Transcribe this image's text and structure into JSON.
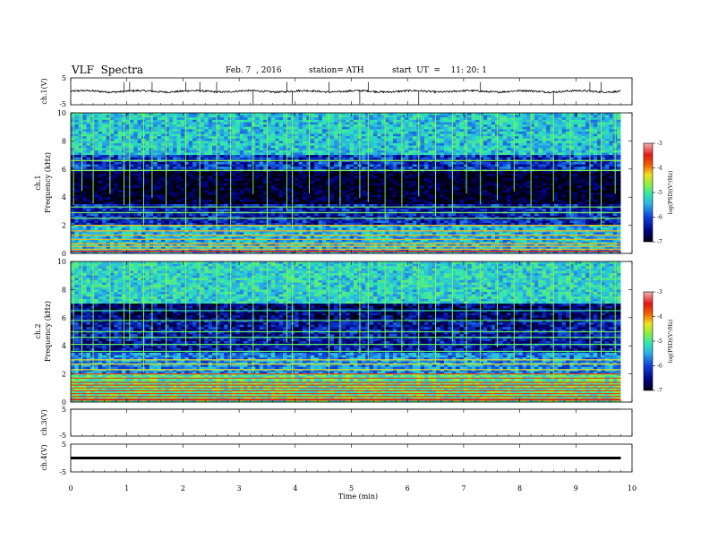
{
  "header": {
    "title": "VLF  Spectra",
    "date": "Feb. 7  , 2016",
    "station": "station= ATH",
    "start": "start  UT  =    11: 20: 1"
  },
  "panels": {
    "ch1_wave": {
      "ylabel": "ch.1(V)",
      "yticks": [
        "5",
        "-5"
      ]
    },
    "ch1_spec": {
      "ylabel_top": "ch.1",
      "ylabel": "Frequency  (kHz)",
      "yticks": [
        "10",
        "8",
        "6",
        "4",
        "2",
        "0"
      ]
    },
    "ch2_spec": {
      "ylabel_top": "ch.2",
      "ylabel": "Frequency  (kHz)",
      "yticks": [
        "10",
        "8",
        "6",
        "4",
        "2",
        "0"
      ]
    },
    "ch3_wave": {
      "ylabel": "ch.3(V)",
      "yticks": [
        "5",
        "-5"
      ]
    },
    "ch4_wave": {
      "ylabel": "ch.4(V)",
      "yticks": [
        "5",
        "-5"
      ]
    }
  },
  "xaxis": {
    "label": "Time  (min)",
    "ticks": [
      "0",
      "1",
      "2",
      "3",
      "4",
      "5",
      "6",
      "7",
      "8",
      "9",
      "10"
    ]
  },
  "colorbar": {
    "label": "log(PSD)(V²/Hz)",
    "ticks": [
      "-3",
      "-4",
      "-5",
      "-6",
      "-7"
    ]
  },
  "chart_data": [
    {
      "type": "line",
      "title": "VLF  Spectra",
      "ylabel": "ch.1(V)",
      "xlabel": "Time  (min)",
      "xlim": [
        0,
        10
      ],
      "ylim": [
        -5,
        5
      ],
      "data_extent_min": 9.8,
      "baseline_v": 0.0,
      "spikes_min": [
        0.95,
        1.05,
        1.45,
        2.05,
        2.3,
        2.6,
        3.25,
        3.85,
        3.95,
        4.6,
        5.15,
        5.3,
        6.2,
        7.3,
        8.6,
        9.25,
        9.45
      ]
    },
    {
      "type": "heatmap",
      "series_name": "ch.1",
      "ylabel": "Frequency  (kHz)",
      "xlim": [
        0,
        10
      ],
      "ylim": [
        0,
        10
      ],
      "zlabel": "log(PSD)(V²/Hz)",
      "zlim": [
        -7,
        -3
      ],
      "steady_lines_khz": [
        0.3,
        0.5,
        0.7,
        1.0,
        1.3,
        1.6,
        2.0,
        2.5,
        2.9,
        3.3,
        5.9,
        6.6
      ],
      "band_levels": [
        {
          "fmin": 0,
          "fmax": 2,
          "logpsd": -5.6
        },
        {
          "fmin": 2,
          "fmax": 3.5,
          "logpsd": -6.3
        },
        {
          "fmin": 3.5,
          "fmax": 5.8,
          "logpsd": -6.9
        },
        {
          "fmin": 5.8,
          "fmax": 7,
          "logpsd": -6.2
        },
        {
          "fmin": 7,
          "fmax": 10,
          "logpsd": -5.5
        }
      ],
      "sferic_times_min": [
        0.05,
        0.2,
        0.4,
        0.7,
        0.95,
        1.05,
        1.3,
        1.45,
        1.7,
        2.05,
        2.3,
        2.6,
        2.85,
        3.25,
        3.5,
        3.85,
        3.95,
        4.25,
        4.6,
        4.8,
        5.15,
        5.3,
        5.6,
        5.9,
        6.2,
        6.5,
        6.8,
        7.05,
        7.3,
        7.6,
        7.9,
        8.2,
        8.6,
        8.9,
        9.25,
        9.45,
        9.7
      ]
    },
    {
      "type": "heatmap",
      "series_name": "ch.2",
      "ylabel": "Frequency  (kHz)",
      "xlim": [
        0,
        10
      ],
      "ylim": [
        0,
        10
      ],
      "zlabel": "log(PSD)(V²/Hz)",
      "zlim": [
        -7,
        -3
      ],
      "steady_lines_khz": [
        0.2,
        0.4,
        0.6,
        0.8,
        1.0,
        1.2,
        1.4,
        1.7,
        2.0,
        2.3,
        2.7,
        3.0,
        3.6,
        4.1,
        4.6,
        5.0,
        5.8,
        6.5
      ],
      "band_levels": [
        {
          "fmin": 0,
          "fmax": 2,
          "logpsd": -5.1
        },
        {
          "fmin": 2,
          "fmax": 3.5,
          "logpsd": -5.8
        },
        {
          "fmin": 3.5,
          "fmax": 5.8,
          "logpsd": -6.4
        },
        {
          "fmin": 5.8,
          "fmax": 7,
          "logpsd": -6.6
        },
        {
          "fmin": 7,
          "fmax": 10,
          "logpsd": -5.4
        }
      ],
      "sferic_times_min": [
        0.05,
        0.2,
        0.4,
        0.7,
        0.95,
        1.05,
        1.3,
        1.45,
        1.7,
        2.05,
        2.3,
        2.6,
        2.85,
        3.25,
        3.5,
        3.85,
        3.95,
        4.25,
        4.6,
        4.8,
        5.15,
        5.3,
        5.6,
        5.9,
        6.2,
        6.5,
        6.8,
        7.05,
        7.3,
        7.6,
        7.9,
        8.2,
        8.6,
        8.9,
        9.25,
        9.45,
        9.7
      ]
    },
    {
      "type": "line",
      "ylabel": "ch.3(V)",
      "xlim": [
        0,
        10
      ],
      "ylim": [
        -5,
        5
      ],
      "data_extent_min": 9.8,
      "baseline_v": 5.0
    },
    {
      "type": "line",
      "ylabel": "ch.4(V)",
      "xlim": [
        0,
        10
      ],
      "ylim": [
        -5,
        5
      ],
      "data_extent_min": 9.8,
      "baseline_v": 0.0
    }
  ],
  "colormap_stops": [
    "#000010",
    "#00007a",
    "#1040d8",
    "#2ab0e8",
    "#30e8b0",
    "#8cf040",
    "#f0e020",
    "#f06000",
    "#e01818",
    "#f4b0b0"
  ]
}
